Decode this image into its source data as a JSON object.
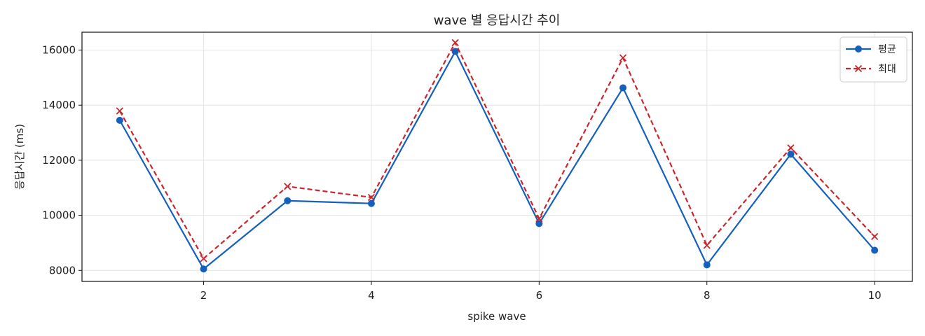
{
  "chart_data": {
    "type": "line",
    "title": "wave 별 응답시간 추이",
    "xlabel": "spike wave",
    "ylabel": "응답시간 (ms)",
    "x": [
      1,
      2,
      3,
      4,
      5,
      6,
      7,
      8,
      9,
      10
    ],
    "xlim": [
      0.55,
      10.45
    ],
    "ylim": [
      7600,
      16650
    ],
    "xticks": [
      2,
      4,
      6,
      8,
      10
    ],
    "yticks": [
      8000,
      10000,
      12000,
      14000,
      16000
    ],
    "grid": true,
    "legend_position": "top-right",
    "series": [
      {
        "name": "평균",
        "color": "#1560bd",
        "line_style": "solid",
        "marker": "circle",
        "values": [
          13450,
          8050,
          10530,
          10430,
          15950,
          9700,
          14630,
          8200,
          12220,
          8730
        ]
      },
      {
        "name": "최대",
        "color": "#c8282d",
        "line_style": "dashed",
        "marker": "x",
        "values": [
          13790,
          8430,
          11050,
          10650,
          16270,
          9880,
          15720,
          8910,
          12450,
          9230
        ]
      }
    ]
  }
}
